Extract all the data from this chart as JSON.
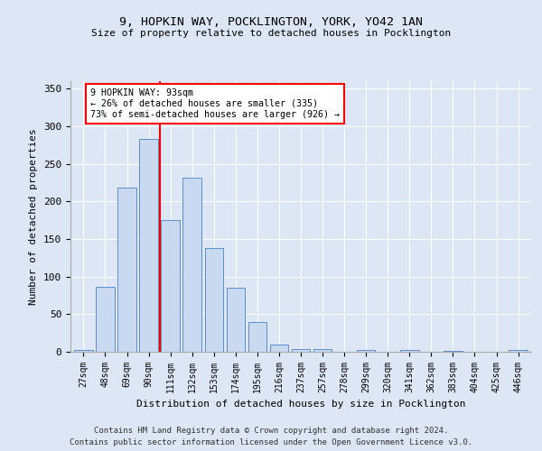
{
  "title1": "9, HOPKIN WAY, POCKLINGTON, YORK, YO42 1AN",
  "title2": "Size of property relative to detached houses in Pocklington",
  "xlabel": "Distribution of detached houses by size in Pocklington",
  "ylabel": "Number of detached properties",
  "bar_color": "#c9d9f0",
  "bar_edge_color": "#5b8fc9",
  "categories": [
    "27sqm",
    "48sqm",
    "69sqm",
    "90sqm",
    "111sqm",
    "132sqm",
    "153sqm",
    "174sqm",
    "195sqm",
    "216sqm",
    "237sqm",
    "257sqm",
    "278sqm",
    "299sqm",
    "320sqm",
    "341sqm",
    "362sqm",
    "383sqm",
    "404sqm",
    "425sqm",
    "446sqm"
  ],
  "values": [
    3,
    86,
    218,
    283,
    175,
    232,
    138,
    85,
    40,
    10,
    4,
    4,
    0,
    2,
    0,
    3,
    0,
    1,
    0,
    0,
    2
  ],
  "ylim": [
    0,
    360
  ],
  "yticks": [
    0,
    50,
    100,
    150,
    200,
    250,
    300,
    350
  ],
  "property_line_x": 3.5,
  "annotation_line1": "9 HOPKIN WAY: 93sqm",
  "annotation_line2": "← 26% of detached houses are smaller (335)",
  "annotation_line3": "73% of semi-detached houses are larger (926) →",
  "background_color": "#dde6f5",
  "grid_color": "#ffffff",
  "fig_background": "#dde6f5",
  "footer1": "Contains HM Land Registry data © Crown copyright and database right 2024.",
  "footer2": "Contains public sector information licensed under the Open Government Licence v3.0."
}
